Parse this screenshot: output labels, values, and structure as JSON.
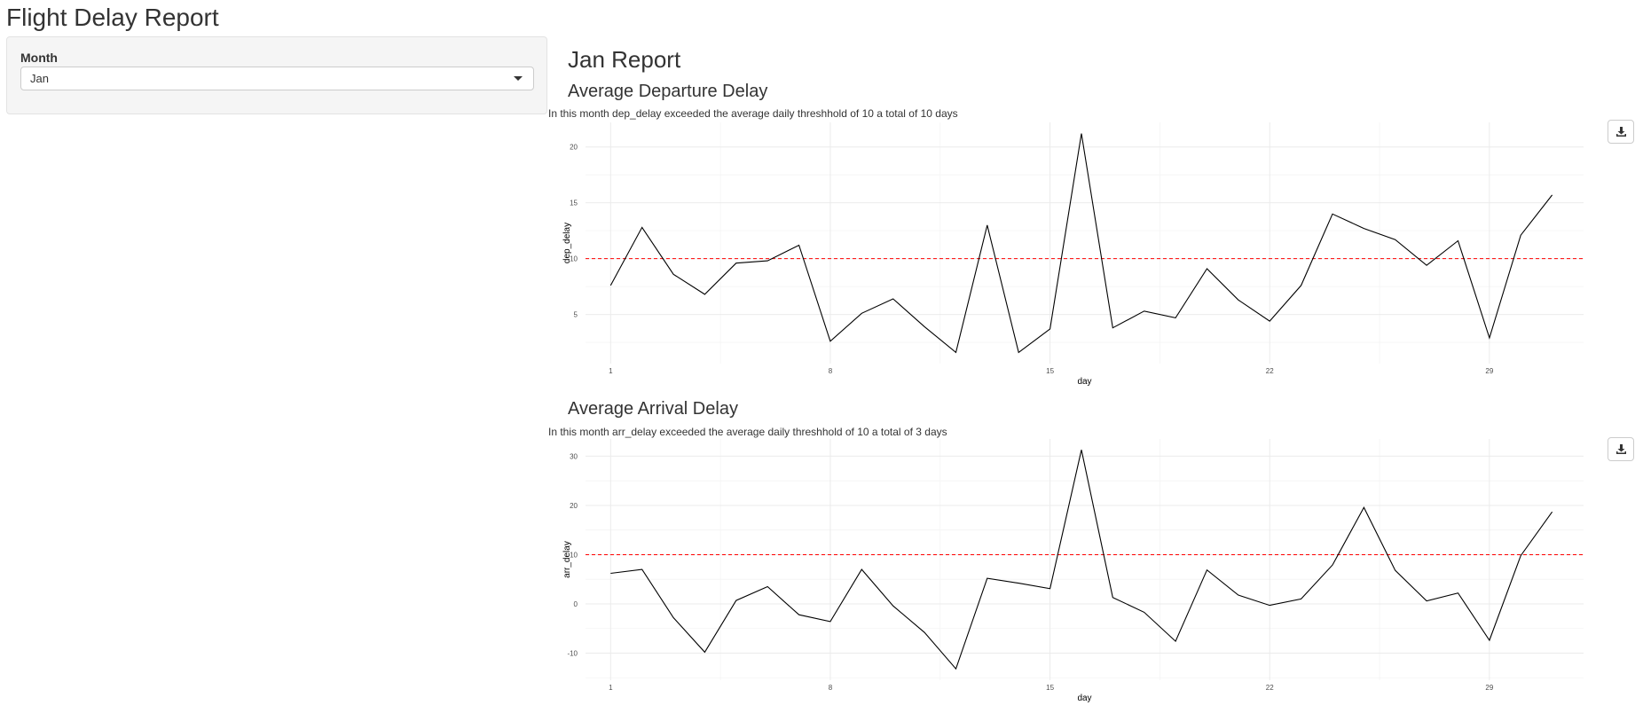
{
  "app": {
    "title": "Flight Delay Report"
  },
  "sidebar": {
    "label": "Month",
    "select_value": "Jan"
  },
  "report": {
    "title": "Jan Report",
    "sections": [
      {
        "title": "Average Departure Delay",
        "note": "In this month dep_delay exceeded the average daily threshhold of 10 a total of 10 days"
      },
      {
        "title": "Average Arrival Delay",
        "note": "In this month arr_delay exceeded the average daily threshhold of 10 a total of 3 days"
      }
    ]
  },
  "icons": {
    "download": "download-icon"
  },
  "colors": {
    "line": "#000000",
    "threshold": "#ff0000",
    "grid": "#ebebeb"
  },
  "chart_data": [
    {
      "type": "line",
      "xlabel": "day",
      "ylabel": "dep_delay",
      "x": [
        1,
        2,
        3,
        4,
        5,
        6,
        7,
        8,
        9,
        10,
        11,
        12,
        13,
        14,
        15,
        16,
        17,
        18,
        19,
        20,
        21,
        22,
        23,
        24,
        25,
        26,
        27,
        28,
        29,
        30,
        31
      ],
      "values": [
        7.6,
        12.8,
        8.6,
        6.8,
        9.6,
        9.8,
        11.2,
        2.6,
        5.1,
        6.4,
        3.9,
        1.6,
        13.0,
        1.6,
        3.7,
        21.2,
        3.8,
        5.3,
        4.7,
        9.1,
        6.3,
        4.4,
        7.6,
        14.0,
        12.7,
        11.7,
        9.4,
        11.6,
        2.9,
        12.1,
        15.7
      ],
      "threshold": 10,
      "xlim": [
        0.2,
        32.0
      ],
      "ylim": [
        0.6,
        22.2
      ],
      "xticks": [
        1,
        8,
        15,
        22,
        29
      ],
      "yticks": [
        5,
        10,
        15,
        20
      ],
      "grid": true
    },
    {
      "type": "line",
      "xlabel": "day",
      "ylabel": "arr_delay",
      "x": [
        1,
        2,
        3,
        4,
        5,
        6,
        7,
        8,
        9,
        10,
        11,
        12,
        13,
        14,
        15,
        16,
        17,
        18,
        19,
        20,
        21,
        22,
        23,
        24,
        25,
        26,
        27,
        28,
        29,
        30,
        31
      ],
      "values": [
        6.2,
        7.0,
        -2.8,
        -9.8,
        0.7,
        3.5,
        -2.2,
        -3.6,
        7.0,
        -0.4,
        -5.8,
        -13.2,
        5.2,
        4.2,
        3.1,
        31.3,
        1.3,
        -1.7,
        -7.6,
        6.9,
        1.8,
        -0.3,
        1.0,
        7.9,
        19.6,
        6.8,
        0.6,
        2.2,
        -7.4,
        9.8,
        18.7
      ],
      "threshold": 10,
      "xlim": [
        0.2,
        32.0
      ],
      "ylim": [
        -15.5,
        33.5
      ],
      "xticks": [
        1,
        8,
        15,
        22,
        29
      ],
      "yticks": [
        -10,
        0,
        10,
        20,
        30
      ],
      "grid": true
    }
  ]
}
